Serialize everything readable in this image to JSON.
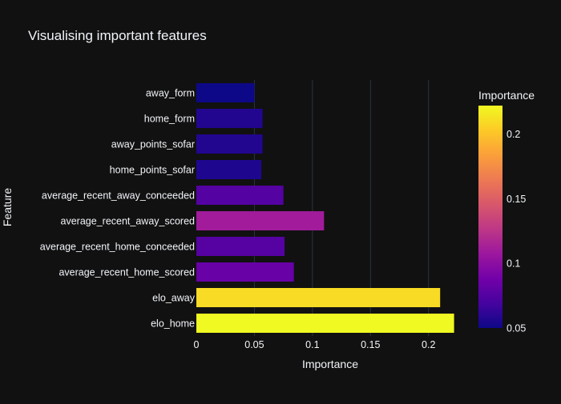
{
  "chart_data": {
    "type": "bar",
    "orientation": "horizontal",
    "title": "Visualising important features",
    "xlabel": "Importance",
    "ylabel": "Feature",
    "xlim": [
      0,
      0.2285
    ],
    "x_ticks": [
      0,
      0.05,
      0.1,
      0.15,
      0.2
    ],
    "x_tick_labels": [
      "0",
      "0.05",
      "0.1",
      "0.15",
      "0.2"
    ],
    "grid": true,
    "categories": [
      "elo_home",
      "elo_away",
      "average_recent_home_scored",
      "average_recent_home_conceeded",
      "average_recent_away_scored",
      "average_recent_away_conceeded",
      "home_points_sofar",
      "away_points_sofar",
      "home_form",
      "away_form"
    ],
    "values": [
      0.222,
      0.21,
      0.084,
      0.076,
      0.11,
      0.075,
      0.056,
      0.057,
      0.057,
      0.05
    ],
    "colorbar": {
      "title": "Importance",
      "range": [
        0.05,
        0.222
      ],
      "ticks": [
        0.05,
        0.1,
        0.15,
        0.2
      ],
      "tick_labels": [
        "0.05",
        "0.1",
        "0.15",
        "0.2"
      ],
      "colorscale": [
        "#0d0887",
        "#46039f",
        "#7201a8",
        "#9c179e",
        "#bd3786",
        "#d8576b",
        "#ed7953",
        "#fb9f3a",
        "#fdca26",
        "#f0f921"
      ]
    }
  }
}
